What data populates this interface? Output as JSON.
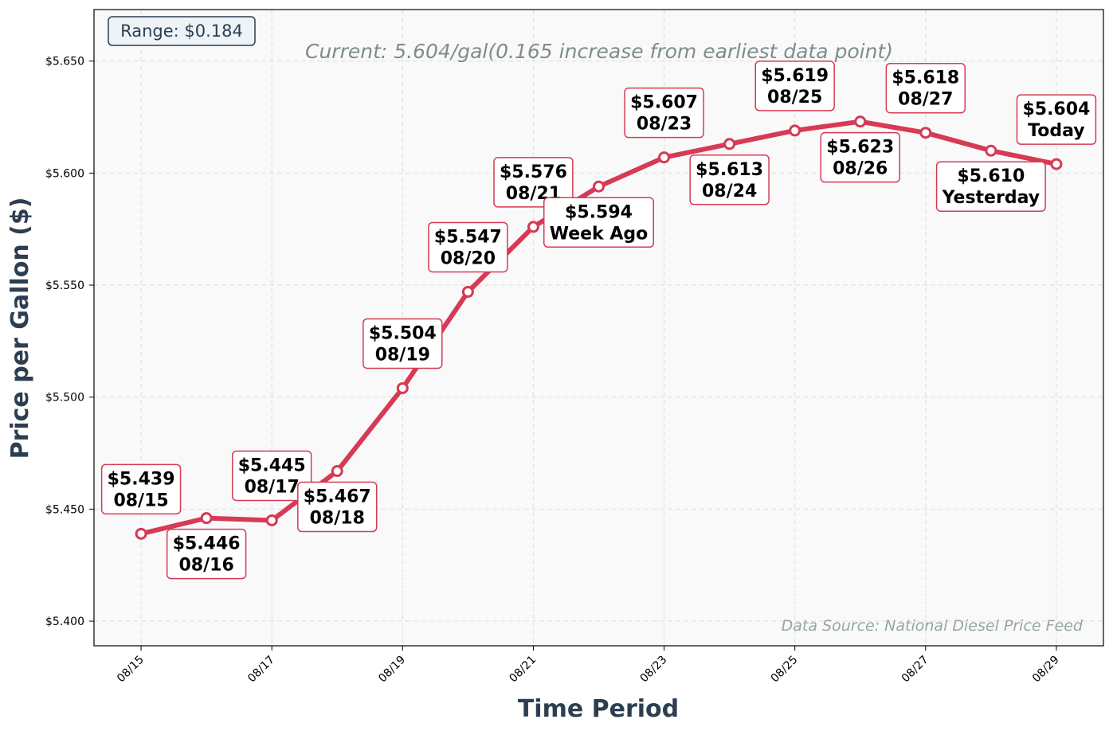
{
  "chart_data": {
    "type": "line",
    "subtitle": "Current: 5.604/gal(0.165 increase from earliest data point)",
    "xlabel": "Time Period",
    "ylabel": "Price per Gallon ($)",
    "ylim": [
      5.389,
      5.673
    ],
    "xlim": [
      -0.72,
      14.72
    ],
    "grid": true,
    "x": [
      "08/15",
      "08/16",
      "08/17",
      "08/18",
      "08/19",
      "08/20",
      "08/21",
      "08/22",
      "08/23",
      "08/24",
      "08/25",
      "08/26",
      "08/27",
      "08/28",
      "08/29"
    ],
    "x_ticks": [
      "08/15",
      "08/17",
      "08/19",
      "08/21",
      "08/23",
      "08/25",
      "08/27",
      "08/29"
    ],
    "y_ticks": [
      "$5.400",
      "$5.450",
      "$5.500",
      "$5.550",
      "$5.600",
      "$5.650"
    ],
    "y_tick_values": [
      5.4,
      5.45,
      5.5,
      5.55,
      5.6,
      5.65
    ],
    "series": [
      {
        "values": [
          5.439,
          5.446,
          5.445,
          5.467,
          5.504,
          5.547,
          5.576,
          5.594,
          5.607,
          5.613,
          5.619,
          5.623,
          5.618,
          5.61,
          5.604
        ],
        "color": "#d63a54"
      }
    ],
    "annotations": [
      {
        "price": "$5.439",
        "label": "08/15",
        "position": "above"
      },
      {
        "price": "$5.446",
        "label": "08/16",
        "position": "below"
      },
      {
        "price": "$5.445",
        "label": "08/17",
        "position": "above"
      },
      {
        "price": "$5.467",
        "label": "08/18",
        "position": "below"
      },
      {
        "price": "$5.504",
        "label": "08/19",
        "position": "above"
      },
      {
        "price": "$5.547",
        "label": "08/20",
        "position": "above"
      },
      {
        "price": "$5.576",
        "label": "08/21",
        "position": "above"
      },
      {
        "price": "$5.594",
        "label": "Week Ago",
        "position": "below"
      },
      {
        "price": "$5.607",
        "label": "08/23",
        "position": "above"
      },
      {
        "price": "$5.613",
        "label": "08/24",
        "position": "below"
      },
      {
        "price": "$5.619",
        "label": "08/25",
        "position": "above"
      },
      {
        "price": "$5.623",
        "label": "08/26",
        "position": "below"
      },
      {
        "price": "$5.618",
        "label": "08/27",
        "position": "above"
      },
      {
        "price": "$5.610",
        "label": "Yesterday",
        "position": "below"
      },
      {
        "price": "$5.604",
        "label": "Today",
        "position": "above"
      }
    ],
    "range_box": "Range: $0.184",
    "source_note": "Data Source: National Diesel Price Feed",
    "colors": {
      "line": "#d63a54",
      "plot_background": "#f9f9f9",
      "axis_title": "#2c3e50",
      "subtitle": "#7f8c8d",
      "source": "#95a5a6",
      "range_box_fill": "#eef3f8"
    }
  }
}
